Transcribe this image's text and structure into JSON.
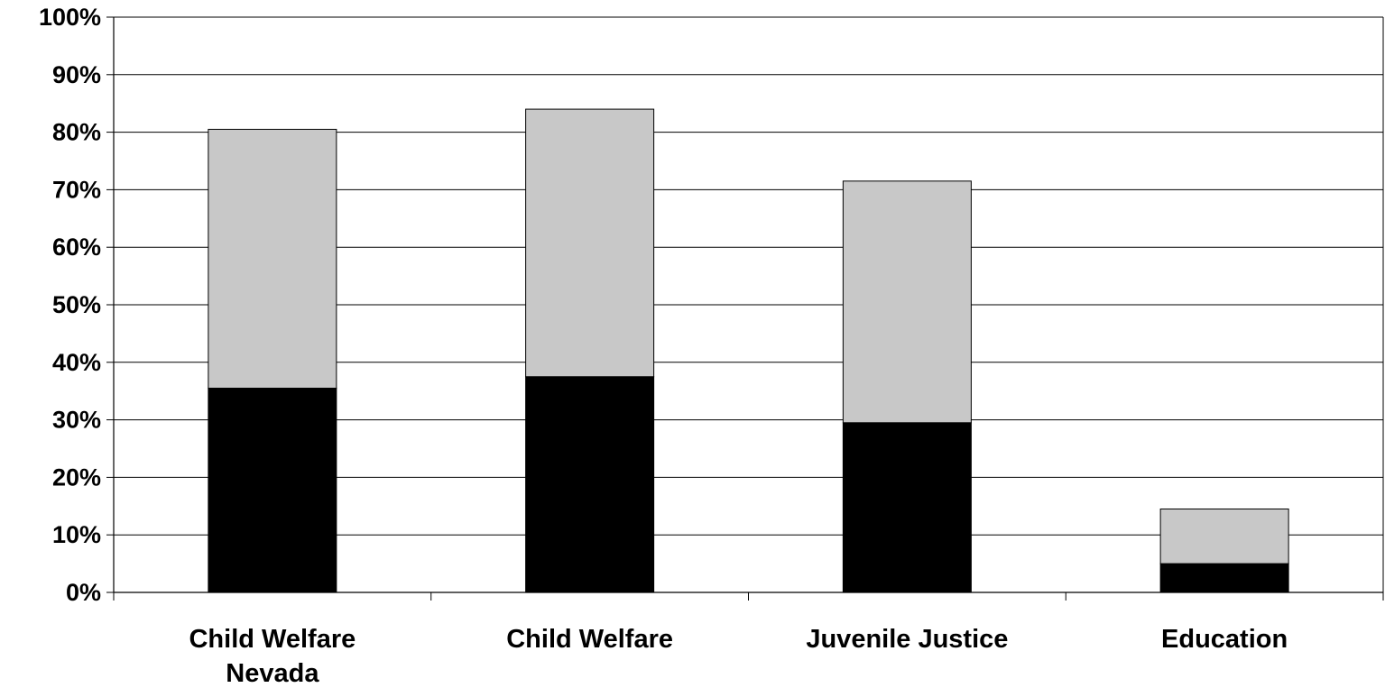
{
  "chart_data": {
    "type": "bar",
    "stacked": true,
    "categories": [
      [
        "Child Welfare",
        "Nevada"
      ],
      [
        "Child Welfare"
      ],
      [
        "Juvenile Justice"
      ],
      [
        "Education"
      ]
    ],
    "series": [
      {
        "values": [
          35.5,
          37.5,
          29.5,
          5
        ],
        "color": "#000000"
      },
      {
        "values": [
          45,
          46.5,
          42,
          9.5
        ],
        "color": "#c8c8c8"
      }
    ],
    "yticks": [
      "0%",
      "10%",
      "20%",
      "30%",
      "40%",
      "50%",
      "60%",
      "70%",
      "80%",
      "90%",
      "100%"
    ],
    "ylim": [
      0,
      100
    ],
    "grid": true,
    "legend": "none",
    "title": "",
    "xlabel": "",
    "ylabel": ""
  }
}
